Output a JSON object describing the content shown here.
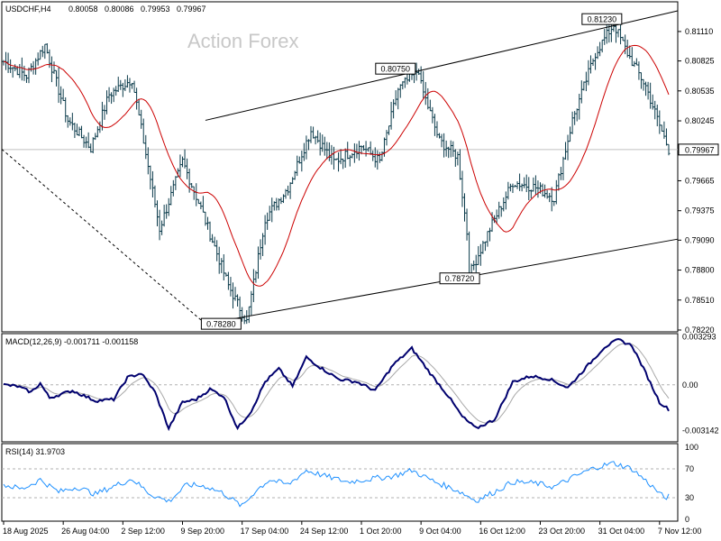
{
  "chart_data": [
    {
      "type": "ohlc",
      "title": "USDCHF,H4",
      "ohlc_header": [
        "0.80058",
        "0.80086",
        "0.79953",
        "0.79967"
      ],
      "watermark": "Action Forex",
      "ylim": [
        0.7822,
        0.8138
      ],
      "yticks": [
        "0.81110",
        "0.80825",
        "0.80535",
        "0.80245",
        "0.79665",
        "0.79375",
        "0.79090",
        "0.78800",
        "0.78510",
        "0.78220"
      ],
      "current_price": "0.79967",
      "xticks": [
        "18 Aug 2025",
        "26 Aug 04:00",
        "2 Sep 12:00",
        "9 Sep 20:00",
        "17 Sep 04:00",
        "24 Sep 12:00",
        "1 Oct 20:00",
        "9 Oct 04:00",
        "16 Oct 12:00",
        "23 Oct 20:00",
        "31 Oct 04:00",
        "7 Nov 12:00"
      ],
      "annotations": [
        {
          "text": "0.78280",
          "value": 0.7828
        },
        {
          "text": "0.80750",
          "value": 0.8075
        },
        {
          "text": "0.78720",
          "value": 0.7872
        },
        {
          "text": "0.81230",
          "value": 0.8123
        }
      ],
      "close_keypoints": [
        {
          "bar": 0,
          "value": 0.8082
        },
        {
          "bar": 10,
          "value": 0.8068
        },
        {
          "bar": 18,
          "value": 0.8098
        },
        {
          "bar": 28,
          "value": 0.8025
        },
        {
          "bar": 38,
          "value": 0.7998
        },
        {
          "bar": 46,
          "value": 0.805
        },
        {
          "bar": 56,
          "value": 0.8065
        },
        {
          "bar": 68,
          "value": 0.792
        },
        {
          "bar": 78,
          "value": 0.7985
        },
        {
          "bar": 86,
          "value": 0.794
        },
        {
          "bar": 98,
          "value": 0.7865
        },
        {
          "bar": 106,
          "value": 0.783
        },
        {
          "bar": 114,
          "value": 0.793
        },
        {
          "bar": 124,
          "value": 0.796
        },
        {
          "bar": 134,
          "value": 0.8015
        },
        {
          "bar": 144,
          "value": 0.7985
        },
        {
          "bar": 156,
          "value": 0.8
        },
        {
          "bar": 164,
          "value": 0.7985
        },
        {
          "bar": 172,
          "value": 0.8055
        },
        {
          "bar": 180,
          "value": 0.8072
        },
        {
          "bar": 190,
          "value": 0.8005
        },
        {
          "bar": 198,
          "value": 0.799
        },
        {
          "bar": 204,
          "value": 0.788
        },
        {
          "bar": 212,
          "value": 0.792
        },
        {
          "bar": 222,
          "value": 0.7965
        },
        {
          "bar": 232,
          "value": 0.796
        },
        {
          "bar": 240,
          "value": 0.795
        },
        {
          "bar": 248,
          "value": 0.8025
        },
        {
          "bar": 258,
          "value": 0.809
        },
        {
          "bar": 266,
          "value": 0.8118
        },
        {
          "bar": 272,
          "value": 0.809
        },
        {
          "bar": 280,
          "value": 0.8058
        },
        {
          "bar": 286,
          "value": 0.802
        },
        {
          "bar": 290,
          "value": 0.7997
        }
      ]
    },
    {
      "type": "line",
      "title": "MACD(12,26,9) -0.001711 -0.001158",
      "yticks": [
        "0.003293",
        "0.00",
        "-0.003142"
      ],
      "ylim": [
        -0.0038,
        0.0034
      ],
      "reference_level": 0.0,
      "macd_keypoints": [
        {
          "bar": 0,
          "value": 0.0
        },
        {
          "bar": 6,
          "value": -0.0001
        },
        {
          "bar": 12,
          "value": -0.0005
        },
        {
          "bar": 16,
          "value": 0.0001
        },
        {
          "bar": 20,
          "value": -0.0009
        },
        {
          "bar": 30,
          "value": -0.0004
        },
        {
          "bar": 40,
          "value": -0.0011
        },
        {
          "bar": 48,
          "value": -0.001
        },
        {
          "bar": 54,
          "value": 0.0005
        },
        {
          "bar": 60,
          "value": 0.0008
        },
        {
          "bar": 66,
          "value": -0.0005
        },
        {
          "bar": 72,
          "value": -0.003
        },
        {
          "bar": 78,
          "value": -0.0012
        },
        {
          "bar": 84,
          "value": -0.001
        },
        {
          "bar": 90,
          "value": -0.0003
        },
        {
          "bar": 96,
          "value": -0.0008
        },
        {
          "bar": 102,
          "value": -0.003
        },
        {
          "bar": 108,
          "value": -0.0018
        },
        {
          "bar": 114,
          "value": 0.0002
        },
        {
          "bar": 120,
          "value": 0.0011
        },
        {
          "bar": 126,
          "value": -0.0001
        },
        {
          "bar": 132,
          "value": 0.0019
        },
        {
          "bar": 138,
          "value": 0.0012
        },
        {
          "bar": 146,
          "value": 0.0004
        },
        {
          "bar": 154,
          "value": 0.0002
        },
        {
          "bar": 162,
          "value": -0.0004
        },
        {
          "bar": 170,
          "value": 0.0014
        },
        {
          "bar": 178,
          "value": 0.0025
        },
        {
          "bar": 186,
          "value": 0.0008
        },
        {
          "bar": 194,
          "value": -0.0008
        },
        {
          "bar": 200,
          "value": -0.0022
        },
        {
          "bar": 206,
          "value": -0.003
        },
        {
          "bar": 214,
          "value": -0.0024
        },
        {
          "bar": 222,
          "value": 0.0002
        },
        {
          "bar": 230,
          "value": 0.0006
        },
        {
          "bar": 238,
          "value": 0.0004
        },
        {
          "bar": 246,
          "value": -0.0002
        },
        {
          "bar": 254,
          "value": 0.0012
        },
        {
          "bar": 262,
          "value": 0.0026
        },
        {
          "bar": 268,
          "value": 0.0031
        },
        {
          "bar": 274,
          "value": 0.0027
        },
        {
          "bar": 280,
          "value": 0.0008
        },
        {
          "bar": 286,
          "value": -0.0012
        },
        {
          "bar": 290,
          "value": -0.0017
        }
      ]
    },
    {
      "type": "line",
      "title": "RSI(14) 31.9703",
      "yticks": [
        "100",
        "70",
        "30",
        "0"
      ],
      "ylim": [
        0,
        100
      ],
      "reference_levels": [
        70,
        30
      ],
      "rsi_keypoints": [
        {
          "bar": 0,
          "value": 48
        },
        {
          "bar": 8,
          "value": 42
        },
        {
          "bar": 16,
          "value": 55
        },
        {
          "bar": 24,
          "value": 38
        },
        {
          "bar": 32,
          "value": 45
        },
        {
          "bar": 40,
          "value": 35
        },
        {
          "bar": 48,
          "value": 46
        },
        {
          "bar": 56,
          "value": 56
        },
        {
          "bar": 64,
          "value": 35
        },
        {
          "bar": 72,
          "value": 25
        },
        {
          "bar": 80,
          "value": 48
        },
        {
          "bar": 88,
          "value": 46
        },
        {
          "bar": 96,
          "value": 36
        },
        {
          "bar": 104,
          "value": 18
        },
        {
          "bar": 110,
          "value": 40
        },
        {
          "bar": 116,
          "value": 55
        },
        {
          "bar": 124,
          "value": 48
        },
        {
          "bar": 132,
          "value": 68
        },
        {
          "bar": 140,
          "value": 60
        },
        {
          "bar": 150,
          "value": 52
        },
        {
          "bar": 160,
          "value": 56
        },
        {
          "bar": 170,
          "value": 60
        },
        {
          "bar": 178,
          "value": 68
        },
        {
          "bar": 188,
          "value": 52
        },
        {
          "bar": 198,
          "value": 40
        },
        {
          "bar": 206,
          "value": 26
        },
        {
          "bar": 214,
          "value": 38
        },
        {
          "bar": 222,
          "value": 52
        },
        {
          "bar": 232,
          "value": 50
        },
        {
          "bar": 240,
          "value": 45
        },
        {
          "bar": 248,
          "value": 58
        },
        {
          "bar": 258,
          "value": 72
        },
        {
          "bar": 266,
          "value": 78
        },
        {
          "bar": 274,
          "value": 70
        },
        {
          "bar": 282,
          "value": 48
        },
        {
          "bar": 288,
          "value": 30
        },
        {
          "bar": 290,
          "value": 32
        }
      ]
    }
  ]
}
